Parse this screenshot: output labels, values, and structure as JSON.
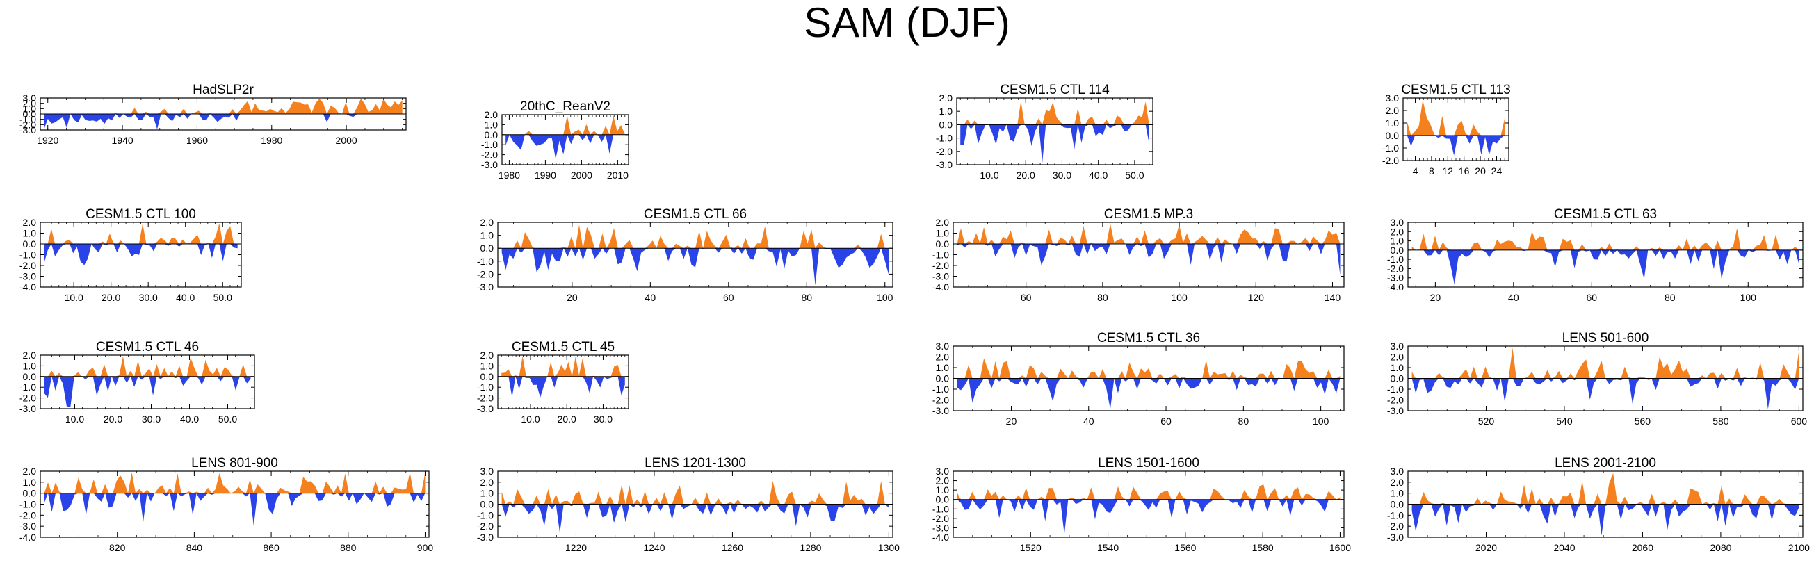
{
  "title": "SAM (DJF)",
  "colors": {
    "positive": "#f5801e",
    "negative": "#2a43e8",
    "axis": "#000000"
  },
  "chart_data": [
    {
      "type": "area",
      "title": "HadSLP2r",
      "ylim": [
        -3.0,
        3.0
      ],
      "yticks": [
        "3.0",
        "2.0",
        "1.0",
        "0.0",
        "-1.0",
        "-2.0",
        "-3.0"
      ],
      "xlim": [
        1918,
        2016
      ],
      "xticks": [
        1920,
        1940,
        1960,
        1980,
        2000
      ],
      "xtick_labels": [
        "1920",
        "1940",
        "1960",
        "1980",
        "2000"
      ],
      "n": 96,
      "seed": 11,
      "trend": 2.6
    },
    {
      "type": "area",
      "title": "20thC_ReanV2",
      "ylim": [
        -3.0,
        2.0
      ],
      "yticks": [
        "2.0",
        "1.0",
        "0.0",
        "-1.0",
        "-2.0",
        "-3.0"
      ],
      "xlim": [
        1978,
        2013
      ],
      "xticks": [
        1980,
        1990,
        2000,
        2010
      ],
      "xtick_labels": [
        "1980",
        "1990",
        "2000",
        "2010"
      ],
      "n": 32,
      "seed": 23,
      "trend": 1.2
    },
    {
      "type": "area",
      "title": "CESM1.5 CTL 114",
      "ylim": [
        -3.0,
        2.0
      ],
      "yticks": [
        "2.0",
        "1.0",
        "0.0",
        "-1.0",
        "-2.0",
        "-3.0"
      ],
      "xlim": [
        1,
        55
      ],
      "xticks": [
        10,
        20,
        30,
        40,
        50
      ],
      "xtick_labels": [
        "10.0",
        "20.0",
        "30.0",
        "40.0",
        "50.0"
      ],
      "n": 54,
      "seed": 37,
      "trend": 0
    },
    {
      "type": "area",
      "title": "CESM1.5 CTL 113",
      "ylim": [
        -2.0,
        3.0
      ],
      "yticks": [
        "3.0",
        "2.0",
        "1.0",
        "0.0",
        "-1.0",
        "-2.0"
      ],
      "xlim": [
        1,
        27
      ],
      "xticks": [
        4,
        8,
        12,
        16,
        20,
        24
      ],
      "xtick_labels": [
        "4",
        "8",
        "12",
        "16",
        "20",
        "24"
      ],
      "n": 26,
      "seed": 41,
      "trend": 0
    },
    {
      "type": "area",
      "title": "CESM1.5 CTL 100",
      "ylim": [
        -4.0,
        2.0
      ],
      "yticks": [
        "2.0",
        "1.0",
        "0.0",
        "-1.0",
        "-2.0",
        "-3.0",
        "-4.0"
      ],
      "xlim": [
        1,
        55
      ],
      "xticks": [
        10,
        20,
        30,
        40,
        50
      ],
      "xtick_labels": [
        "10.0",
        "20.0",
        "30.0",
        "40.0",
        "50.0"
      ],
      "n": 54,
      "seed": 53,
      "trend": 0
    },
    {
      "type": "area",
      "title": "CESM1.5 CTL 66",
      "ylim": [
        -3.0,
        2.0
      ],
      "yticks": [
        "2.0",
        "1.0",
        "0.0",
        "-1.0",
        "-2.0",
        "-3.0"
      ],
      "xlim": [
        1,
        102
      ],
      "xticks": [
        20,
        40,
        60,
        80,
        100
      ],
      "xtick_labels": [
        "20",
        "40",
        "60",
        "80",
        "100"
      ],
      "n": 101,
      "seed": 67,
      "trend": 0
    },
    {
      "type": "area",
      "title": "CESM1.5 MP.3",
      "ylim": [
        -4.0,
        2.0
      ],
      "yticks": [
        "2.0",
        "1.0",
        "0.0",
        "-1.0",
        "-2.0",
        "-3.0",
        "-4.0"
      ],
      "xlim": [
        41,
        143
      ],
      "xticks": [
        60,
        80,
        100,
        120,
        140
      ],
      "xtick_labels": [
        "60",
        "80",
        "100",
        "120",
        "140"
      ],
      "n": 101,
      "seed": 71,
      "trend": 0
    },
    {
      "type": "area",
      "title": "CESM1.5 CTL 63",
      "ylim": [
        -4.0,
        3.0
      ],
      "yticks": [
        "3.0",
        "2.0",
        "1.0",
        "0.0",
        "-1.0",
        "-2.0",
        "-3.0",
        "-4.0"
      ],
      "xlim": [
        13,
        114
      ],
      "xticks": [
        20,
        40,
        60,
        80,
        100
      ],
      "xtick_labels": [
        "20",
        "40",
        "60",
        "80",
        "100"
      ],
      "n": 101,
      "seed": 83,
      "trend": 0
    },
    {
      "type": "area",
      "title": "CESM1.5 CTL 46",
      "ylim": [
        -3.0,
        2.0
      ],
      "yticks": [
        "2.0",
        "1.0",
        "0.0",
        "-1.0",
        "-2.0",
        "-3.0"
      ],
      "xlim": [
        1,
        57
      ],
      "xticks": [
        10,
        20,
        30,
        40,
        50
      ],
      "xtick_labels": [
        "10.0",
        "20.0",
        "30.0",
        "40.0",
        "50.0"
      ],
      "n": 56,
      "seed": 97,
      "trend": 0
    },
    {
      "type": "area",
      "title": "CESM1.5 CTL 45",
      "ylim": [
        -3.0,
        2.0
      ],
      "yticks": [
        "2.0",
        "1.0",
        "0.0",
        "-1.0",
        "-2.0",
        "-3.0"
      ],
      "xlim": [
        1,
        37
      ],
      "xticks": [
        10,
        20,
        30
      ],
      "xtick_labels": [
        "10.0",
        "20.0",
        "30.0"
      ],
      "n": 36,
      "seed": 101,
      "trend": 0
    },
    {
      "type": "area",
      "title": "CESM1.5 CTL 36",
      "ylim": [
        -3.0,
        3.0
      ],
      "yticks": [
        "3.0",
        "2.0",
        "1.0",
        "0.0",
        "-1.0",
        "-2.0",
        "-3.0"
      ],
      "xlim": [
        5,
        106
      ],
      "xticks": [
        20,
        40,
        60,
        80,
        100
      ],
      "xtick_labels": [
        "20",
        "40",
        "60",
        "80",
        "100"
      ],
      "n": 101,
      "seed": 113,
      "trend": 0
    },
    {
      "type": "area",
      "title": "LENS 501-600",
      "ylim": [
        -3.0,
        3.0
      ],
      "yticks": [
        "3.0",
        "2.0",
        "1.0",
        "0.0",
        "-1.0",
        "-2.0",
        "-3.0"
      ],
      "xlim": [
        500,
        601
      ],
      "xticks": [
        520,
        540,
        560,
        580,
        600
      ],
      "xtick_labels": [
        "520",
        "540",
        "560",
        "580",
        "600"
      ],
      "n": 101,
      "seed": 127,
      "trend": 0
    },
    {
      "type": "area",
      "title": "LENS 801-900",
      "ylim": [
        -4.0,
        2.0
      ],
      "yticks": [
        "2.0",
        "1.0",
        "0.0",
        "-1.0",
        "-2.0",
        "-3.0",
        "-4.0"
      ],
      "xlim": [
        800,
        901
      ],
      "xticks": [
        820,
        840,
        860,
        880,
        900
      ],
      "xtick_labels": [
        "820",
        "840",
        "860",
        "880",
        "900"
      ],
      "n": 101,
      "seed": 131,
      "trend": 0
    },
    {
      "type": "area",
      "title": "LENS 1201-1300",
      "ylim": [
        -3.0,
        3.0
      ],
      "yticks": [
        "3.0",
        "2.0",
        "1.0",
        "0.0",
        "-1.0",
        "-2.0",
        "-3.0"
      ],
      "xlim": [
        1200,
        1301
      ],
      "xticks": [
        1220,
        1240,
        1260,
        1280,
        1300
      ],
      "xtick_labels": [
        "1220",
        "1240",
        "1260",
        "1280",
        "1300"
      ],
      "n": 101,
      "seed": 139,
      "trend": 0
    },
    {
      "type": "area",
      "title": "LENS 1501-1600",
      "ylim": [
        -4.0,
        3.0
      ],
      "yticks": [
        "3.0",
        "2.0",
        "1.0",
        "0.0",
        "-1.0",
        "-2.0",
        "-3.0",
        "-4.0"
      ],
      "xlim": [
        1500,
        1601
      ],
      "xticks": [
        1520,
        1540,
        1560,
        1580,
        1600
      ],
      "xtick_labels": [
        "1520",
        "1540",
        "1560",
        "1580",
        "1600"
      ],
      "n": 101,
      "seed": 149,
      "trend": 0
    },
    {
      "type": "area",
      "title": "LENS 2001-2100",
      "ylim": [
        -3.0,
        3.0
      ],
      "yticks": [
        "3.0",
        "2.0",
        "1.0",
        "0.0",
        "-1.0",
        "-2.0",
        "-3.0"
      ],
      "xlim": [
        2000,
        2101
      ],
      "xticks": [
        2020,
        2040,
        2060,
        2080,
        2100
      ],
      "xtick_labels": [
        "2020",
        "2040",
        "2060",
        "2080",
        "2100"
      ],
      "n": 101,
      "seed": 157,
      "trend": 0
    }
  ]
}
